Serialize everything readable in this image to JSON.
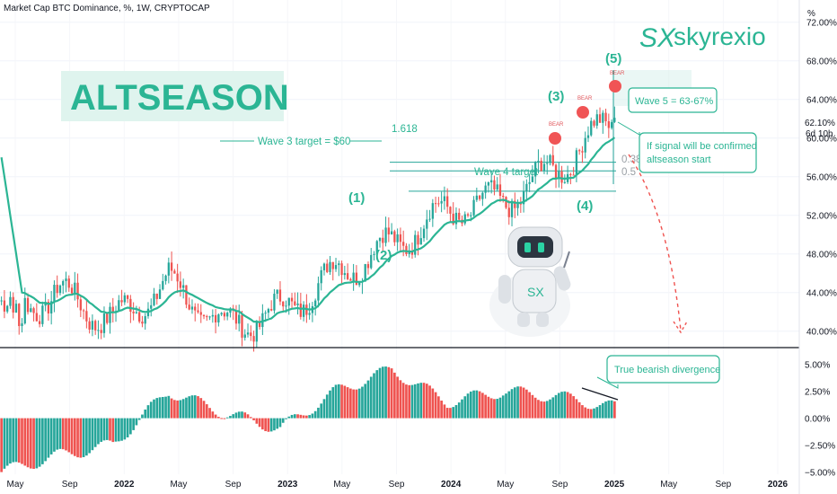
{
  "header": {
    "title": "Market Cap BTC Dominance, %, 1W, CRYPTOCAP"
  },
  "price_axis": {
    "unit_label": "%",
    "ticks": [
      "72.00%",
      "68.00%",
      "64.00%",
      "60.00%",
      "56.00%",
      "52.00%",
      "48.00%",
      "44.00%",
      "40.00%"
    ],
    "tick_values": [
      72,
      68,
      64,
      60,
      56,
      52,
      48,
      44,
      40
    ],
    "current_value": "62.10%",
    "countdown": "6d 10h"
  },
  "osc_axis": {
    "ticks": [
      "5.00%",
      "2.50%",
      "0.00%",
      "−2.50%",
      "−5.00%"
    ],
    "tick_values": [
      5,
      2.5,
      0,
      -2.5,
      -5
    ]
  },
  "time_axis": {
    "labels": [
      "May",
      "Sep",
      "2022",
      "May",
      "Sep",
      "2023",
      "May",
      "Sep",
      "2024",
      "May",
      "Sep",
      "2025",
      "May",
      "Sep",
      "2026"
    ],
    "bold": [
      false,
      false,
      true,
      false,
      false,
      true,
      false,
      false,
      true,
      false,
      false,
      true,
      false,
      false,
      true
    ]
  },
  "logo": {
    "mark": "SX",
    "text": "skyrexio"
  },
  "annotations": {
    "altseason": "ALTSEASON",
    "wave3_target": "Wave 3 target = $60",
    "fib_1618": "1.618",
    "wave4_target": "Wave 4 target",
    "fib_0382": "0.382",
    "fib_05": "0.5",
    "wave5": "Wave 5 = 63-67%",
    "signal": [
      "If signal will be confirmed",
      "altseason start"
    ],
    "divergence": "True bearish divergence",
    "bear_label": "BEAR",
    "waves": [
      "(1)",
      "(2)",
      "(3)",
      "(4)",
      "(5)"
    ]
  },
  "colors": {
    "up": "#26a69a",
    "down": "#ef5350",
    "ma": "#2bb594",
    "annotation": "#26a69a",
    "bear_dot": "#f05455",
    "bear_text": "#e0565b",
    "axis_text": "#131722"
  },
  "chart_data": [
    {
      "type": "candlestick",
      "title": "Market Cap BTC Dominance, %, 1W, CRYPTOCAP",
      "y_unit": "%",
      "ylim": [
        38.3,
        74.3
      ],
      "x": [
        "2021-05",
        "2021-09",
        "2022-01",
        "2022-05",
        "2022-09",
        "2023-01",
        "2023-05",
        "2023-09",
        "2024-01",
        "2024-05",
        "2024-09",
        "2025-01"
      ],
      "close_approx": [
        41.5,
        44.0,
        41.0,
        45.0,
        40.5,
        42.0,
        46.0,
        49.0,
        52.5,
        53.5,
        57.0,
        62.1
      ],
      "last_close": 62.1,
      "moving_average_last": 59.0,
      "bear_signals": [
        61.0,
        63.5,
        66.0
      ],
      "fib_levels": {
        "0.382": 57.5,
        "0.5": 56.6,
        "1.618": 59.7
      }
    },
    {
      "type": "histogram",
      "title": "",
      "y_unit": "%",
      "ylim": [
        -5.2,
        6.3
      ],
      "x": [
        "2021-05",
        "2021-09",
        "2022-01",
        "2022-05",
        "2022-09",
        "2023-01",
        "2023-05",
        "2023-09",
        "2024-01",
        "2024-05",
        "2024-09",
        "2025-01"
      ],
      "values": [
        -5.0,
        -3.5,
        -2.5,
        2.5,
        0.5,
        -1.0,
        2.5,
        4.5,
        1.5,
        2.5,
        2.0,
        1.0
      ]
    }
  ]
}
